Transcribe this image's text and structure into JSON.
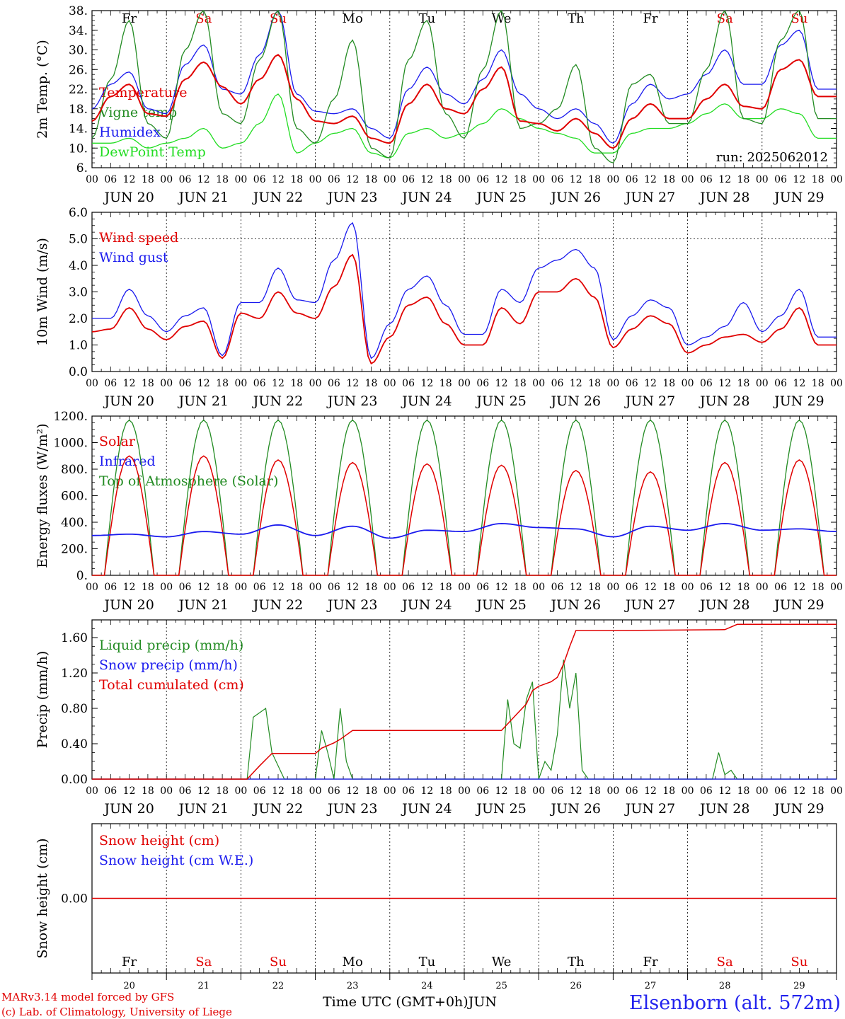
{
  "chart_data": [
    {
      "type": "line",
      "ylabel": "2m Temp. (°C)",
      "ylim": [
        6,
        38
      ],
      "yticks": [
        "6.",
        "10.",
        "14.",
        "18.",
        "22.",
        "26.",
        "30.",
        "34.",
        "38."
      ],
      "annotation": "run: 2025062012",
      "series": [
        {
          "name": "Temperature",
          "color": "#e00000",
          "x_hours": [
            0,
            6,
            12,
            18,
            24,
            30,
            36,
            42,
            48,
            54,
            60,
            66,
            72,
            78,
            84,
            90,
            96,
            102,
            108,
            114,
            120,
            126,
            132,
            138,
            144,
            150,
            156,
            162,
            168,
            174,
            180,
            186,
            192,
            198,
            204,
            210,
            216,
            222,
            228,
            234
          ],
          "values": [
            15.5,
            20.5,
            23,
            17,
            16.5,
            24,
            27.5,
            22.5,
            19,
            24,
            29,
            20,
            15.5,
            15,
            16.5,
            12,
            11,
            19,
            23,
            18,
            17,
            22,
            26.5,
            15.5,
            15,
            13.5,
            16,
            13,
            10,
            16,
            19,
            16,
            16,
            20,
            23,
            18.5,
            18,
            26,
            28,
            20.5
          ]
        },
        {
          "name": "Vigne temp",
          "color": "#228b22",
          "x_hours": [
            0,
            6,
            12,
            18,
            24,
            30,
            36,
            42,
            48,
            54,
            60,
            66,
            72,
            78,
            84,
            90,
            96,
            102,
            108,
            114,
            120,
            126,
            132,
            138,
            144,
            150,
            156,
            162,
            168,
            174,
            180,
            186,
            192,
            198,
            204,
            210,
            216,
            222,
            228,
            234
          ],
          "values": [
            12,
            24,
            36,
            15,
            12,
            30,
            38,
            17,
            15,
            28,
            38,
            14,
            11,
            20,
            32,
            10,
            8,
            28,
            36,
            17,
            12,
            26,
            38,
            14,
            15,
            18,
            27,
            10,
            7,
            23,
            25,
            15,
            15,
            26,
            38,
            16,
            15,
            32,
            38,
            16
          ]
        },
        {
          "name": "Humidex",
          "color": "#1a1aee",
          "x_hours": [
            0,
            6,
            12,
            18,
            24,
            30,
            36,
            42,
            48,
            54,
            60,
            66,
            72,
            78,
            84,
            90,
            96,
            102,
            108,
            114,
            120,
            126,
            132,
            138,
            144,
            150,
            156,
            162,
            168,
            174,
            180,
            186,
            192,
            198,
            204,
            210,
            216,
            222,
            228,
            234
          ],
          "values": [
            18,
            23,
            25.5,
            18,
            17,
            27,
            31,
            22,
            21,
            29,
            38,
            21,
            17.5,
            17,
            18,
            14,
            12,
            22,
            26.5,
            21,
            19,
            24,
            30,
            21,
            18,
            16,
            18,
            15,
            11,
            19,
            23,
            20,
            21,
            25,
            30,
            23,
            23,
            31,
            34,
            22
          ]
        },
        {
          "name": "DewPoint Temp",
          "color": "#22dd22",
          "x_hours": [
            0,
            6,
            12,
            18,
            24,
            30,
            36,
            42,
            48,
            54,
            60,
            66,
            72,
            78,
            84,
            90,
            96,
            102,
            108,
            114,
            120,
            126,
            132,
            138,
            144,
            150,
            156,
            162,
            168,
            174,
            180,
            186,
            192,
            198,
            204,
            210,
            216,
            222,
            228,
            234
          ],
          "values": [
            11,
            11,
            12,
            10,
            11,
            12,
            14,
            10,
            11,
            15,
            21,
            9,
            11,
            13,
            14,
            9,
            8,
            13,
            14,
            12,
            13,
            15,
            18,
            16,
            14,
            13,
            12,
            9,
            9,
            13,
            14,
            14,
            15,
            17,
            19,
            16,
            16,
            18,
            17,
            12
          ]
        }
      ]
    },
    {
      "type": "line",
      "ylabel": "10m Wind (m/s)",
      "ylim": [
        0,
        6
      ],
      "yticks": [
        "0.0",
        "1.0",
        "2.0",
        "3.0",
        "4.0",
        "5.0",
        "6.0"
      ],
      "series": [
        {
          "name": "Wind speed",
          "color": "#e00000",
          "x_hours": [
            0,
            6,
            12,
            18,
            24,
            30,
            36,
            42,
            48,
            54,
            60,
            66,
            72,
            78,
            84,
            90,
            96,
            102,
            108,
            114,
            120,
            126,
            132,
            138,
            144,
            150,
            156,
            162,
            168,
            174,
            180,
            186,
            192,
            198,
            204,
            210,
            216,
            222,
            228,
            234
          ],
          "values": [
            1.5,
            1.6,
            2.4,
            1.6,
            1.2,
            1.7,
            1.9,
            0.5,
            2.2,
            2.0,
            3.0,
            2.2,
            2.0,
            3.2,
            4.4,
            0.3,
            1.3,
            2.5,
            2.8,
            1.8,
            1.0,
            1.0,
            2.4,
            1.8,
            3.0,
            3.0,
            3.5,
            2.8,
            0.9,
            1.6,
            2.1,
            1.8,
            0.7,
            1.0,
            1.3,
            1.4,
            1.1,
            1.6,
            2.4,
            1.0
          ]
        },
        {
          "name": "Wind gust",
          "color": "#1a1aee",
          "x_hours": [
            0,
            6,
            12,
            18,
            24,
            30,
            36,
            42,
            48,
            54,
            60,
            66,
            72,
            78,
            84,
            90,
            96,
            102,
            108,
            114,
            120,
            126,
            132,
            138,
            144,
            150,
            156,
            162,
            168,
            174,
            180,
            186,
            192,
            198,
            204,
            210,
            216,
            222,
            228,
            234
          ],
          "values": [
            2.0,
            2.0,
            3.1,
            2.1,
            1.5,
            2.1,
            2.4,
            0.6,
            2.6,
            2.6,
            3.9,
            2.7,
            2.6,
            4.2,
            5.6,
            0.5,
            1.8,
            3.1,
            3.6,
            2.5,
            1.4,
            1.4,
            3.1,
            2.6,
            3.9,
            4.2,
            4.6,
            3.9,
            1.2,
            2.1,
            2.7,
            2.4,
            1.0,
            1.3,
            1.7,
            2.6,
            1.5,
            2.1,
            3.1,
            1.3
          ]
        }
      ]
    },
    {
      "type": "line",
      "ylabel": "Energy fluxes (W/m²)",
      "ylim": [
        0,
        1200
      ],
      "yticks": [
        "0.",
        "200.",
        "400.",
        "600.",
        "800.",
        "1000.",
        "1200."
      ],
      "series": [
        {
          "name": "Solar",
          "color": "#e00000",
          "daily_peaks": [
            900,
            900,
            870,
            850,
            840,
            830,
            790,
            780,
            850,
            870
          ]
        },
        {
          "name": "Infrared",
          "color": "#1a1aee",
          "x_hours": [
            0,
            12,
            24,
            36,
            48,
            60,
            72,
            84,
            96,
            108,
            120,
            132,
            144,
            156,
            168,
            180,
            192,
            204,
            216,
            228,
            240
          ],
          "values": [
            300,
            310,
            290,
            330,
            310,
            380,
            300,
            370,
            280,
            340,
            330,
            390,
            360,
            350,
            290,
            370,
            340,
            390,
            340,
            350,
            330
          ]
        },
        {
          "name": "Top of Atmosphere (Solar)",
          "color": "#228b22",
          "daily_peaks": [
            1170,
            1170,
            1170,
            1170,
            1170,
            1170,
            1170,
            1170,
            1170,
            1170
          ]
        }
      ]
    },
    {
      "type": "line",
      "ylabel": "Precip (mm/h)",
      "ylim": [
        0,
        1.8
      ],
      "yticks": [
        "0.00",
        "0.40",
        "0.80",
        "1.20",
        "1.60"
      ],
      "series": [
        {
          "name": "Liquid precip (mm/h)",
          "color": "#228b22",
          "x_hours": [
            0,
            50,
            52,
            56,
            58,
            62,
            64,
            72,
            74,
            76,
            78,
            80,
            82,
            84,
            86,
            132,
            134,
            136,
            138,
            140,
            142,
            144,
            146,
            148,
            150,
            152,
            154,
            156,
            158,
            160,
            168,
            200,
            202,
            204,
            206,
            208
          ],
          "values": [
            0,
            0,
            0.7,
            0.8,
            0.3,
            0,
            0,
            0,
            0.55,
            0.3,
            0,
            0.8,
            0.2,
            0,
            0,
            0,
            0.9,
            0.4,
            0.35,
            0.9,
            1.1,
            0,
            0.2,
            0.1,
            0.5,
            1.35,
            0.8,
            1.2,
            0.1,
            0,
            0,
            0,
            0.3,
            0.05,
            0.1,
            0
          ]
        },
        {
          "name": "Snow precip (mm/h)",
          "color": "#1a1aee",
          "x_hours": [
            0,
            240
          ],
          "values": [
            0,
            0
          ]
        },
        {
          "name": "Total cumulated (cm)",
          "color": "#e00000",
          "x_hours": [
            0,
            50,
            54,
            58,
            72,
            74,
            78,
            80,
            84,
            132,
            136,
            140,
            142,
            144,
            148,
            150,
            152,
            154,
            156,
            168,
            204,
            208,
            240
          ],
          "values": [
            0,
            0,
            0.15,
            0.29,
            0.29,
            0.35,
            0.41,
            0.45,
            0.55,
            0.55,
            0.7,
            0.85,
            1.0,
            1.05,
            1.1,
            1.15,
            1.3,
            1.5,
            1.68,
            1.68,
            1.69,
            1.75,
            1.75
          ]
        }
      ]
    },
    {
      "type": "line",
      "ylabel": "Snow height (cm)",
      "yticks": [
        "0.00"
      ],
      "series": [
        {
          "name": "Snow height (cm)",
          "color": "#e00000",
          "values": [
            0,
            0
          ]
        },
        {
          "name": "Snow height (cm W.E.)",
          "color": "#1a1aee",
          "values": [
            0,
            0
          ]
        }
      ]
    }
  ],
  "days": {
    "names": [
      "Fr",
      "Sa",
      "Su",
      "Mo",
      "Tu",
      "We",
      "Th",
      "Fr",
      "Sa",
      "Su"
    ],
    "weekend": [
      false,
      true,
      true,
      false,
      false,
      false,
      false,
      false,
      true,
      true
    ],
    "dates": [
      "JUN 20",
      "JUN 21",
      "JUN 22",
      "JUN 23",
      "JUN 24",
      "JUN 25",
      "JUN 26",
      "JUN 27",
      "JUN 28",
      "JUN 29"
    ],
    "numbers": [
      "20",
      "21",
      "22",
      "23",
      "24",
      "25",
      "26",
      "27",
      "28",
      "29"
    ]
  },
  "hour_ticks": [
    "00",
    "06",
    "12",
    "18"
  ],
  "last_tick": "00",
  "footer": {
    "model": "MARv3.14 model forced by GFS",
    "credit": "(c) Lab. of Climatology, University of Liege",
    "axis_label": "Time UTC (GMT+0h)",
    "month": "JUN",
    "station": "Elsenborn (alt. 572m)"
  },
  "colors": {
    "red": "#e00000",
    "green": "#228b22",
    "blue": "#1a1aee",
    "lightgreen": "#22dd22",
    "black": "#000000"
  }
}
